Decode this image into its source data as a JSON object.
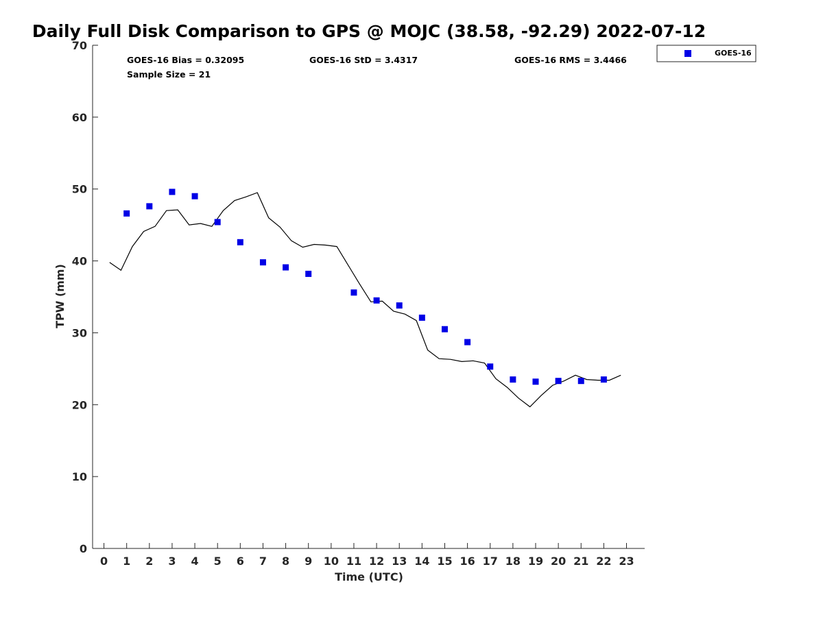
{
  "chart_data": {
    "type": "scatter",
    "title": "Daily Full Disk Comparison to GPS @ MOJC (38.58, -92.29) 2022-07-12",
    "xlabel": "Time (UTC)",
    "ylabel": "TPW (mm)",
    "xlim": [
      -0.5,
      23.8
    ],
    "ylim": [
      0,
      70
    ],
    "x_ticks": [
      0,
      1,
      2,
      3,
      4,
      5,
      6,
      7,
      8,
      9,
      10,
      11,
      12,
      13,
      14,
      15,
      16,
      17,
      18,
      19,
      20,
      21,
      22,
      23
    ],
    "y_ticks": [
      0,
      10,
      20,
      30,
      40,
      50,
      60,
      70
    ],
    "grid": false,
    "legend_position": "top-right",
    "stats": {
      "bias": "GOES-16 Bias = 0.32095",
      "std": "GOES-16 StD = 3.4317",
      "rms": "GOES-16 RMS = 3.4466",
      "sample": "Sample Size = 21"
    },
    "series": [
      {
        "name": "GOES-16",
        "marker": "square",
        "color": "#0000e6",
        "points": [
          [
            1,
            46.6
          ],
          [
            2,
            47.6
          ],
          [
            3,
            49.6
          ],
          [
            4,
            49.0
          ],
          [
            5,
            45.4
          ],
          [
            6,
            42.6
          ],
          [
            7,
            39.8
          ],
          [
            8,
            39.1
          ],
          [
            9,
            38.2
          ],
          [
            11,
            35.6
          ],
          [
            12,
            34.5
          ],
          [
            13,
            33.8
          ],
          [
            14,
            32.1
          ],
          [
            15,
            30.5
          ],
          [
            16,
            28.7
          ],
          [
            17,
            25.3
          ],
          [
            18,
            23.5
          ],
          [
            19,
            23.2
          ],
          [
            20,
            23.3
          ],
          [
            21,
            23.3
          ],
          [
            22,
            23.5
          ]
        ]
      },
      {
        "marker": "line",
        "color": "#000000",
        "points": [
          [
            0.25,
            39.8
          ],
          [
            0.75,
            38.7
          ],
          [
            1.25,
            42.0
          ],
          [
            1.75,
            44.1
          ],
          [
            2.25,
            44.8
          ],
          [
            2.75,
            47.0
          ],
          [
            3.25,
            47.1
          ],
          [
            3.75,
            45.0
          ],
          [
            4.25,
            45.2
          ],
          [
            4.75,
            44.8
          ],
          [
            5.25,
            47.0
          ],
          [
            5.75,
            48.4
          ],
          [
            6.25,
            48.9
          ],
          [
            6.75,
            49.5
          ],
          [
            7.25,
            46.0
          ],
          [
            7.75,
            44.7
          ],
          [
            8.25,
            42.8
          ],
          [
            8.75,
            41.9
          ],
          [
            9.25,
            42.3
          ],
          [
            9.75,
            42.2
          ],
          [
            10.25,
            42.0
          ],
          [
            10.75,
            39.4
          ],
          [
            11.25,
            36.8
          ],
          [
            11.75,
            34.3
          ],
          [
            12.25,
            34.4
          ],
          [
            12.75,
            33.0
          ],
          [
            13.25,
            32.6
          ],
          [
            13.75,
            31.7
          ],
          [
            14.25,
            27.6
          ],
          [
            14.75,
            26.4
          ],
          [
            15.25,
            26.3
          ],
          [
            15.75,
            26.0
          ],
          [
            16.25,
            26.1
          ],
          [
            16.75,
            25.8
          ],
          [
            17.25,
            23.6
          ],
          [
            17.75,
            22.4
          ],
          [
            18.25,
            20.9
          ],
          [
            18.75,
            19.7
          ],
          [
            19.25,
            21.3
          ],
          [
            19.75,
            22.7
          ],
          [
            20.25,
            23.3
          ],
          [
            20.75,
            24.1
          ],
          [
            21.25,
            23.5
          ],
          [
            21.75,
            23.4
          ],
          [
            22.25,
            23.4
          ],
          [
            22.75,
            24.1
          ]
        ]
      }
    ]
  }
}
